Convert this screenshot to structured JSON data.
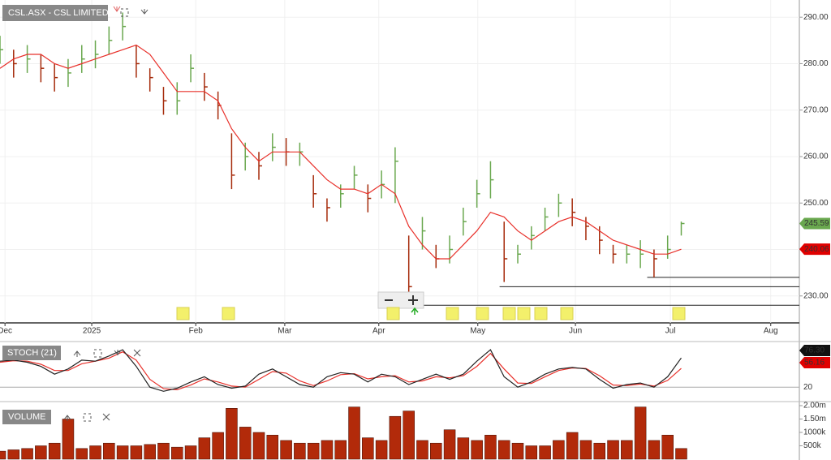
{
  "chart_data": {
    "type": "ohlc",
    "title": "CSL.ASX - CSL LIMITED",
    "x": [
      0,
      3,
      6,
      9,
      12,
      15,
      18,
      21,
      24,
      27,
      30,
      33,
      36,
      39,
      42,
      45,
      48,
      51,
      54,
      57,
      60,
      63,
      66,
      69,
      72,
      75,
      78,
      81,
      84,
      87,
      90,
      93,
      96,
      99,
      102,
      105,
      108,
      111,
      114,
      117,
      120,
      123,
      126,
      129,
      132,
      135,
      138,
      141,
      144,
      147,
      150
    ],
    "xlim": [
      0,
      176
    ],
    "xticks": [
      {
        "value": 1.1,
        "label": "Dec"
      },
      {
        "value": 20.2,
        "label": "2025"
      },
      {
        "value": 43.1,
        "label": "Feb"
      },
      {
        "value": 62.7,
        "label": "Mar"
      },
      {
        "value": 83.4,
        "label": "Apr"
      },
      {
        "value": 105.2,
        "label": "May"
      },
      {
        "value": 126.7,
        "label": "Jun"
      },
      {
        "value": 147.6,
        "label": "Jul"
      },
      {
        "value": 169.7,
        "label": "Aug"
      }
    ],
    "ylim": [
      224.2,
      293.7
    ],
    "yticks": [
      {
        "value": 230,
        "label": "230.00"
      },
      {
        "value": 240,
        "label": "240.00"
      },
      {
        "value": 250,
        "label": "250.00"
      },
      {
        "value": 260,
        "label": "260.00"
      },
      {
        "value": 270,
        "label": "270.00"
      },
      {
        "value": 280,
        "label": "280.00"
      },
      {
        "value": 290,
        "label": "290.00"
      }
    ],
    "grid": true,
    "up_color": "#6aa84f",
    "down_color": "#a52a0a",
    "high": [
      286,
      283,
      284,
      282,
      280,
      281,
      284,
      285,
      288,
      291,
      284,
      279,
      275,
      276,
      282,
      278,
      274,
      265,
      263,
      261,
      265,
      264,
      263,
      256,
      251,
      254,
      258,
      254,
      257,
      262,
      243,
      247,
      241,
      243,
      249,
      255,
      259,
      246,
      241,
      245,
      249,
      252,
      251,
      247,
      245,
      241,
      241,
      242,
      240,
      243,
      246
    ],
    "low": [
      280,
      277,
      278,
      276,
      274,
      275,
      278,
      279,
      282,
      285,
      277,
      274,
      269,
      269,
      276,
      272,
      268,
      253,
      257,
      255,
      259,
      258,
      258,
      249,
      246,
      249,
      253,
      248,
      251,
      250,
      229,
      240,
      236,
      237,
      243,
      249,
      251,
      233,
      237,
      240,
      244,
      247,
      245,
      242,
      239,
      237,
      237,
      236,
      234,
      238,
      243
    ],
    "series": [
      {
        "name": "Close",
        "color": "#6aa84f",
        "values": [
          283,
          280,
          281,
          279,
          277,
          278,
          281,
          282,
          285,
          288,
          280,
          277,
          272,
          272,
          279,
          275,
          271,
          256,
          260,
          258,
          262,
          261,
          261,
          252,
          249,
          252,
          256,
          251,
          254,
          259,
          232,
          244,
          238,
          240,
          246,
          252,
          255,
          238,
          239,
          243,
          247,
          250,
          248,
          245,
          242,
          239,
          239,
          239,
          238,
          240,
          245.59
        ],
        "last_label": "245.59"
      },
      {
        "name": "MA",
        "color": "#e8302a",
        "values": [
          279,
          281,
          282,
          282,
          280,
          279,
          280,
          281,
          282,
          283,
          284,
          282,
          278,
          274,
          274,
          274,
          272,
          266,
          262,
          259,
          261,
          261,
          261,
          258,
          255,
          253,
          253,
          252,
          254,
          252,
          245,
          241,
          238,
          238,
          241,
          244,
          248,
          247,
          244,
          242,
          244,
          246,
          247,
          246,
          244,
          242,
          241,
          240,
          239,
          239,
          240.06
        ],
        "last_label": "240.06"
      }
    ],
    "support_lines": [
      {
        "value": 234,
        "from": 142.5
      },
      {
        "value": 232,
        "from": 110
      },
      {
        "value": 228,
        "from": 88.4
      }
    ],
    "stoch": {
      "title": "STOCH (21)",
      "ylim": [
        0,
        100
      ],
      "yticks": [
        20
      ],
      "series": [
        {
          "name": "%K",
          "color": "#222222",
          "values": [
            70,
            72,
            68,
            60,
            45,
            55,
            72,
            70,
            80,
            92,
            60,
            20,
            12,
            18,
            30,
            40,
            25,
            18,
            22,
            45,
            55,
            40,
            25,
            20,
            40,
            48,
            45,
            30,
            45,
            40,
            25,
            35,
            45,
            35,
            45,
            70,
            92,
            40,
            20,
            30,
            45,
            55,
            58,
            55,
            35,
            18,
            25,
            28,
            20,
            40,
            76.3
          ],
          "last_label": "76.30"
        },
        {
          "name": "%D",
          "color": "#e8302a",
          "values": [
            68,
            71,
            70,
            64,
            52,
            52,
            65,
            70,
            76,
            88,
            72,
            35,
            17,
            15,
            24,
            36,
            30,
            22,
            20,
            35,
            50,
            47,
            32,
            23,
            32,
            44,
            46,
            36,
            40,
            42,
            30,
            32,
            40,
            38,
            42,
            60,
            85,
            55,
            28,
            27,
            40,
            52,
            57,
            56,
            42,
            24,
            23,
            26,
            22,
            33,
            56.16
          ],
          "last_label": "56.16"
        }
      ]
    },
    "volume": {
      "title": "VOLUME",
      "color": "#b22a0a",
      "ylim": [
        0,
        2060000
      ],
      "yticks": [
        {
          "value": 500000,
          "label": "500k"
        },
        {
          "value": 1000000,
          "label": "1000k"
        },
        {
          "value": 1500000,
          "label": "1.50m"
        },
        {
          "value": 2000000,
          "label": "2.00m"
        }
      ],
      "values": [
        300000,
        350000,
        400000,
        500000,
        600000,
        1500000,
        400000,
        500000,
        600000,
        500000,
        500000,
        550000,
        600000,
        450000,
        500000,
        800000,
        1000000,
        1900000,
        1200000,
        1000000,
        900000,
        700000,
        600000,
        600000,
        700000,
        700000,
        1950000,
        800000,
        700000,
        1600000,
        1800000,
        700000,
        600000,
        1100000,
        800000,
        700000,
        900000,
        700000,
        600000,
        500000,
        500000,
        700000,
        1000000,
        700000,
        600000,
        700000,
        700000,
        1950000,
        700000,
        900000,
        400000
      ]
    }
  }
}
